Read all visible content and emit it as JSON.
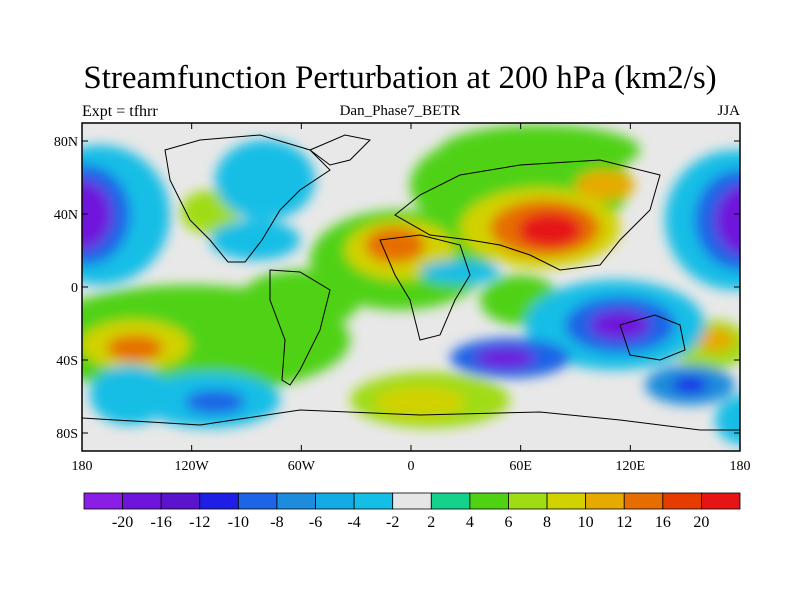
{
  "title": "Streamfunction Perturbation at 200 hPa (km2/s)",
  "left_string": "Expt = tfhrr",
  "center_string": "Dan_Phase7_BETR",
  "right_string": "JJA",
  "lat_ticks": [
    "80N",
    "40N",
    "0",
    "40S",
    "80S"
  ],
  "lon_ticks": [
    "180",
    "120W",
    "60W",
    "0",
    "60E",
    "120E",
    "180"
  ],
  "colorbar": {
    "labels": [
      "-20",
      "-16",
      "-12",
      "-10",
      "-8",
      "-6",
      "-4",
      "-2",
      "2",
      "4",
      "6",
      "8",
      "10",
      "12",
      "16",
      "20"
    ],
    "colors": [
      "#8b1ee6",
      "#6f14dc",
      "#5a14cd",
      "#1e1ee6",
      "#1e64e6",
      "#1e8cdc",
      "#14aae6",
      "#14bee6",
      "#e6e6e6",
      "#14d28c",
      "#50d214",
      "#a0dc14",
      "#d2d200",
      "#e6aa00",
      "#e66e00",
      "#e63c00",
      "#e61414"
    ]
  },
  "chart_data": {
    "type": "heatmap",
    "title": "Streamfunction Perturbation at 200 hPa (km2/s)",
    "subtitle": "Dan_Phase7_BETR",
    "season": "JJA",
    "experiment": "Expt = tfhrr",
    "x": {
      "range": [
        -180,
        180
      ]
    },
    "y": {
      "range": [
        -90,
        90
      ]
    },
    "levels": [
      -20,
      -16,
      -12,
      -10,
      -8,
      -6,
      -4,
      -2,
      2,
      4,
      6,
      8,
      10,
      12,
      16,
      20
    ],
    "features": [
      {
        "name": "Asian high",
        "lon": 75,
        "lat": 32,
        "value": 22
      },
      {
        "name": "North Africa high",
        "lon": -3,
        "lat": 22,
        "value": 14
      },
      {
        "name": "Central Asia high",
        "lon": 85,
        "lat": 55,
        "value": 12
      },
      {
        "name": "East Pacific low",
        "lon": 180,
        "lat": 30,
        "value": -22
      },
      {
        "name": "West Pacific low",
        "lon": -170,
        "lat": 30,
        "value": -22
      },
      {
        "name": "Indian Ocean low",
        "lon": 100,
        "lat": -25,
        "value": -14
      },
      {
        "name": "Southwest Atlantic low",
        "lon": 55,
        "lat": -42,
        "value": -12
      },
      {
        "name": "Southeast Pacific high",
        "lon": -145,
        "lat": -35,
        "value": 12
      },
      {
        "name": "Southern Ocean high",
        "lon": 10,
        "lat": -62,
        "value": 10
      }
    ]
  }
}
